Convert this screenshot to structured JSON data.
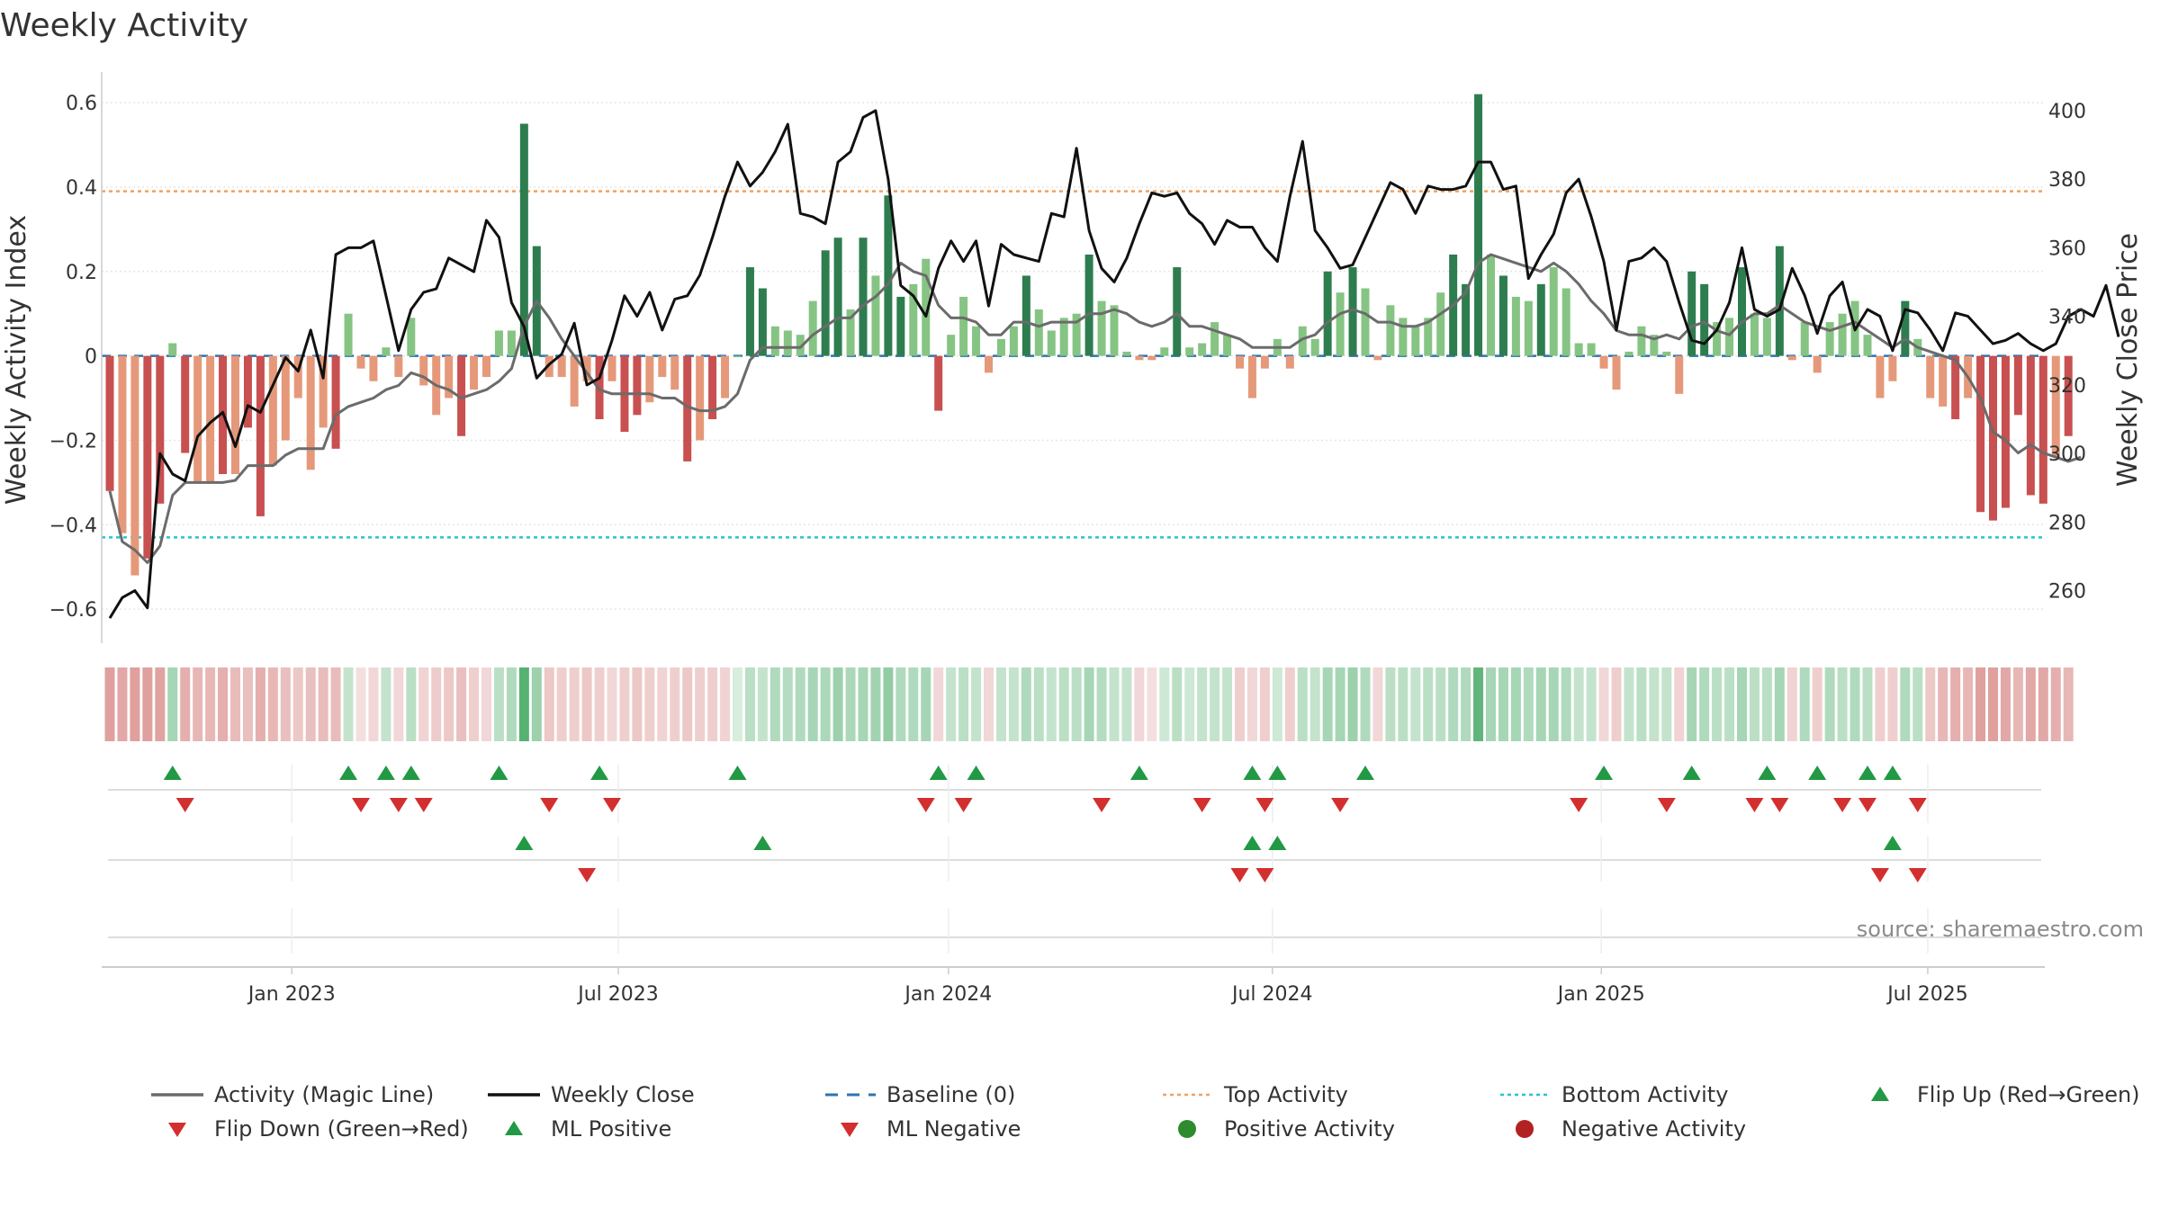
{
  "chart_data": {
    "type": "bar",
    "title": "Weekly Activity",
    "ylabel": "Weekly Activity Index",
    "ylabel_right": "Weekly Close Price",
    "ylim": [
      -0.67,
      0.63
    ],
    "ylim_right": [
      246,
      406
    ],
    "yticks": [
      {
        "v": 0.6,
        "t": "0.6"
      },
      {
        "v": 0.4,
        "t": "0.4"
      },
      {
        "v": 0.2,
        "t": "0.2"
      },
      {
        "v": 0,
        "t": "0"
      },
      {
        "v": -0.2,
        "t": "−0.2"
      },
      {
        "v": -0.4,
        "t": "−0.4"
      },
      {
        "v": -0.6,
        "t": "−0.6"
      }
    ],
    "yticks_right": [
      {
        "v": 400,
        "t": "400"
      },
      {
        "v": 380,
        "t": "380"
      },
      {
        "v": 360,
        "t": "360"
      },
      {
        "v": 340,
        "t": "340"
      },
      {
        "v": 320,
        "t": "320"
      },
      {
        "v": 300,
        "t": "300"
      },
      {
        "v": 280,
        "t": "280"
      },
      {
        "v": 260,
        "t": "260"
      }
    ],
    "xticks": [
      {
        "i": 14.5,
        "t": "Jan 2023"
      },
      {
        "i": 40.5,
        "t": "Jul 2023"
      },
      {
        "i": 66.8,
        "t": "Jan 2024"
      },
      {
        "i": 92.6,
        "t": "Jul 2024"
      },
      {
        "i": 118.8,
        "t": "Jan 2025"
      },
      {
        "i": 144.8,
        "t": "Jul 2025"
      }
    ],
    "top_activity": 0.39,
    "bottom_activity": -0.43,
    "activity": [
      -0.32,
      -0.42,
      -0.52,
      -0.48,
      -0.35,
      0.03,
      -0.23,
      -0.3,
      -0.3,
      -0.28,
      -0.28,
      -0.17,
      -0.38,
      -0.26,
      -0.2,
      -0.1,
      -0.27,
      -0.17,
      -0.22,
      0.1,
      -0.03,
      -0.06,
      0.02,
      -0.05,
      0.09,
      -0.07,
      -0.14,
      -0.1,
      -0.19,
      -0.08,
      -0.05,
      0.06,
      0.06,
      0.55,
      0.26,
      -0.05,
      -0.05,
      -0.12,
      -0.06,
      -0.15,
      -0.06,
      -0.18,
      -0.14,
      -0.11,
      -0.05,
      -0.08,
      -0.25,
      -0.2,
      -0.15,
      -0.1,
      0,
      0.21,
      0.16,
      0.07,
      0.06,
      0.05,
      0.13,
      0.25,
      0.28,
      0.11,
      0.28,
      0.19,
      0.38,
      0.14,
      0.17,
      0.23,
      -0.13,
      0.05,
      0.14,
      0.07,
      -0.04,
      0.04,
      0.07,
      0.19,
      0.11,
      0.06,
      0.09,
      0.1,
      0.24,
      0.13,
      0.12,
      0.01,
      -0.01,
      -0.01,
      0.02,
      0.21,
      0.02,
      0.03,
      0.08,
      0.05,
      -0.03,
      -0.1,
      -0.03,
      0.04,
      -0.03,
      0.07,
      0.04,
      0.2,
      0.15,
      0.21,
      0.16,
      -0.01,
      0.12,
      0.09,
      0.07,
      0.09,
      0.15,
      0.24,
      0.17,
      0.62,
      0.24,
      0.19,
      0.14,
      0.13,
      0.17,
      0.21,
      0.16,
      0.03,
      0.03,
      -0.03,
      -0.08,
      0.01,
      0.07,
      0.05,
      0.01,
      -0.09,
      0.2,
      0.17,
      0.08,
      0.09,
      0.21,
      0.1,
      0.09,
      0.26,
      -0.01,
      0.08,
      -0.04,
      0.08,
      0.1,
      0.13,
      0.05,
      -0.1,
      -0.06,
      0.13,
      0.04,
      -0.1,
      -0.12,
      -0.15,
      -0.1,
      -0.37,
      -0.39,
      -0.36,
      -0.14,
      -0.33,
      -0.35,
      -0.24,
      -0.19
    ],
    "weekly_close": [
      252,
      258,
      260,
      255,
      300,
      294,
      292,
      305,
      309,
      312,
      302,
      314,
      312,
      320,
      328,
      324,
      336,
      322,
      358,
      360,
      360,
      362,
      346,
      330,
      342,
      347,
      348,
      357,
      355,
      353,
      368,
      363,
      344,
      337,
      322,
      326,
      329,
      338,
      320,
      322,
      333,
      346,
      340,
      347,
      336,
      345,
      346,
      352,
      363,
      375,
      385,
      378,
      382,
      388,
      396,
      370,
      369,
      367,
      385,
      388,
      398,
      400,
      380,
      349,
      346,
      340,
      354,
      362,
      356,
      362,
      343,
      361,
      358,
      357,
      356,
      370,
      369,
      389,
      365,
      354,
      350,
      357,
      367,
      376,
      375,
      376,
      370,
      367,
      361,
      368,
      366,
      366,
      360,
      356,
      375,
      391,
      365,
      360,
      354,
      355,
      363,
      371,
      379,
      377,
      370,
      378,
      377,
      377,
      378,
      385,
      385,
      377,
      378,
      351,
      358,
      364,
      376,
      380,
      369,
      356,
      336,
      356,
      357,
      360,
      356,
      344,
      333,
      332,
      336,
      344,
      360,
      342,
      340,
      342,
      354,
      346,
      335,
      346,
      350,
      336,
      342,
      340,
      330,
      342,
      341,
      336,
      330,
      341,
      340,
      336,
      332,
      333,
      335,
      332,
      330,
      332,
      340,
      342,
      340,
      349,
      334
    ],
    "magic_line": [
      -0.32,
      -0.44,
      -0.46,
      -0.49,
      -0.45,
      -0.33,
      -0.3,
      -0.3,
      -0.3,
      -0.3,
      -0.295,
      -0.26,
      -0.26,
      -0.26,
      -0.235,
      -0.22,
      -0.22,
      -0.22,
      -0.14,
      -0.12,
      -0.11,
      -0.1,
      -0.08,
      -0.07,
      -0.04,
      -0.05,
      -0.07,
      -0.08,
      -0.1,
      -0.09,
      -0.08,
      -0.06,
      -0.03,
      0.07,
      0.13,
      0.09,
      0.04,
      0,
      -0.04,
      -0.08,
      -0.09,
      -0.09,
      -0.09,
      -0.09,
      -0.1,
      -0.1,
      -0.12,
      -0.13,
      -0.13,
      -0.12,
      -0.09,
      -0.01,
      0.02,
      0.02,
      0.02,
      0.02,
      0.05,
      0.07,
      0.09,
      0.09,
      0.12,
      0.14,
      0.17,
      0.22,
      0.2,
      0.19,
      0.12,
      0.09,
      0.09,
      0.08,
      0.05,
      0.05,
      0.08,
      0.08,
      0.07,
      0.08,
      0.08,
      0.08,
      0.1,
      0.1,
      0.11,
      0.1,
      0.08,
      0.07,
      0.08,
      0.1,
      0.07,
      0.07,
      0.06,
      0.05,
      0.04,
      0.02,
      0.02,
      0.02,
      0.02,
      0.04,
      0.05,
      0.08,
      0.1,
      0.11,
      0.1,
      0.08,
      0.08,
      0.07,
      0.07,
      0.08,
      0.1,
      0.12,
      0.15,
      0.22,
      0.24,
      0.23,
      0.22,
      0.21,
      0.2,
      0.22,
      0.2,
      0.17,
      0.13,
      0.1,
      0.06,
      0.05,
      0.05,
      0.04,
      0.05,
      0.04,
      0.07,
      0.08,
      0.06,
      0.05,
      0.08,
      0.1,
      0.1,
      0.12,
      0.1,
      0.08,
      0.07,
      0.06,
      0.07,
      0.08,
      0.06,
      0.04,
      0.02,
      0.04,
      0.02,
      0.01,
      0,
      -0.01,
      -0.05,
      -0.1,
      -0.18,
      -0.2,
      -0.23,
      -0.21,
      -0.23,
      -0.24,
      -0.25,
      -0.24
    ],
    "heat_alpha": [
      0.6,
      0.55,
      0.6,
      0.6,
      0.58,
      0.45,
      0.5,
      0.45,
      0.45,
      0.5,
      0.42,
      0.4,
      0.5,
      0.45,
      0.4,
      0.35,
      0.4,
      0.42,
      0.42,
      0.3,
      0.2,
      0.25,
      0.3,
      0.25,
      0.35,
      0.28,
      0.32,
      0.35,
      0.4,
      0.3,
      0.25,
      0.35,
      0.4,
      0.85,
      0.5,
      0.35,
      0.3,
      0.3,
      0.35,
      0.3,
      0.25,
      0.3,
      0.35,
      0.3,
      0.28,
      0.3,
      0.35,
      0.3,
      0.3,
      0.28,
      0.2,
      0.35,
      0.3,
      0.4,
      0.38,
      0.4,
      0.45,
      0.42,
      0.5,
      0.42,
      0.45,
      0.48,
      0.55,
      0.4,
      0.4,
      0.45,
      0.25,
      0.3,
      0.35,
      0.3,
      0.25,
      0.3,
      0.3,
      0.4,
      0.35,
      0.3,
      0.35,
      0.35,
      0.45,
      0.38,
      0.3,
      0.3,
      0.25,
      0.2,
      0.25,
      0.35,
      0.25,
      0.3,
      0.3,
      0.3,
      0.3,
      0.25,
      0.3,
      0.25,
      0.3,
      0.35,
      0.3,
      0.45,
      0.45,
      0.5,
      0.4,
      0.25,
      0.35,
      0.35,
      0.3,
      0.35,
      0.35,
      0.4,
      0.4,
      0.8,
      0.45,
      0.45,
      0.45,
      0.4,
      0.45,
      0.45,
      0.4,
      0.3,
      0.3,
      0.25,
      0.3,
      0.3,
      0.35,
      0.3,
      0.3,
      0.28,
      0.45,
      0.4,
      0.35,
      0.35,
      0.45,
      0.35,
      0.35,
      0.45,
      0.28,
      0.4,
      0.3,
      0.4,
      0.35,
      0.4,
      0.35,
      0.3,
      0.3,
      0.4,
      0.35,
      0.35,
      0.45,
      0.5,
      0.45,
      0.6,
      0.6,
      0.55,
      0.45,
      0.55,
      0.55,
      0.5,
      0.45
    ],
    "flip_up": [
      5,
      19,
      22,
      24,
      31,
      39,
      50,
      66,
      69,
      82,
      91,
      93,
      100,
      119,
      126,
      132,
      136,
      140,
      142
    ],
    "flip_down": [
      6,
      20,
      23,
      25,
      35,
      40,
      65,
      68,
      79,
      87,
      92,
      98,
      117,
      124,
      131,
      133,
      138,
      140,
      144
    ],
    "ml_positive": [
      33,
      52,
      91,
      93,
      142
    ],
    "ml_negative": [
      38,
      90,
      92,
      141,
      144
    ],
    "legend": [
      {
        "label": "Activity (Magic Line)",
        "kind": "line",
        "color": "#6b6b6b"
      },
      {
        "label": "Weekly Close",
        "kind": "line",
        "color": "#111111"
      },
      {
        "label": "Baseline (0)",
        "kind": "dash",
        "color": "#2d74b3"
      },
      {
        "label": "Top Activity",
        "kind": "dot",
        "color": "#f0a060"
      },
      {
        "label": "Bottom Activity",
        "kind": "dot",
        "color": "#28c4cc"
      },
      {
        "label": "Flip Up (Red→Green)",
        "kind": "tri-up",
        "color": "#229944"
      },
      {
        "label": "Flip Down (Green→Red)",
        "kind": "tri-down",
        "color": "#d32f2f"
      },
      {
        "label": "ML Positive",
        "kind": "tri-up",
        "color": "#229944"
      },
      {
        "label": "ML Negative",
        "kind": "tri-down",
        "color": "#d32f2f"
      },
      {
        "label": "Positive Activity",
        "kind": "circle",
        "color": "#2e8b2e"
      },
      {
        "label": "Negative Activity",
        "kind": "circle",
        "color": "#b22222"
      }
    ],
    "source": "source: sharemaestro.com",
    "colors": {
      "pos_strong": "#2e7d4f",
      "pos_light": "#86c483",
      "neg_strong": "#c85050",
      "neg_light": "#e5997a",
      "heat_pos": "#3aa35a",
      "heat_neg": "#c9605e"
    }
  }
}
